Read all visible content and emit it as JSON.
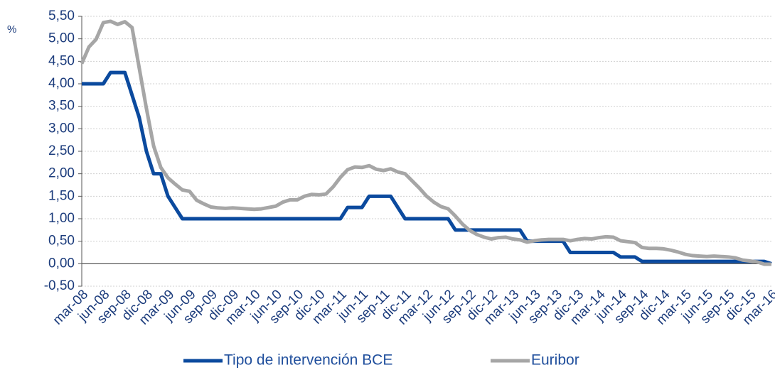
{
  "chart_data": {
    "type": "line",
    "y_unit": "%",
    "categories": [
      "mar-08",
      null,
      null,
      "jun-08",
      null,
      null,
      "sep-08",
      null,
      null,
      "dic-08",
      null,
      null,
      "mar-09",
      null,
      null,
      "jun-09",
      null,
      null,
      "sep-09",
      null,
      null,
      "dic-09",
      null,
      null,
      "mar-10",
      null,
      null,
      "jun-10",
      null,
      null,
      "sep-10",
      null,
      null,
      "dic-10",
      null,
      null,
      "mar-11",
      null,
      null,
      "jun-11",
      null,
      null,
      "sep-11",
      null,
      null,
      "dic-11",
      null,
      null,
      "mar-12",
      null,
      null,
      "jun-12",
      null,
      null,
      "sep-12",
      null,
      null,
      "dic-12",
      null,
      null,
      "mar-13",
      null,
      null,
      "jun-13",
      null,
      null,
      "sep-13",
      null,
      null,
      "dic-13",
      null,
      null,
      "mar-14",
      null,
      null,
      "jun-14",
      null,
      null,
      "sep-14",
      null,
      null,
      "dic-14",
      null,
      null,
      "mar-15",
      null,
      null,
      "jun-15",
      null,
      null,
      "sep-15",
      null,
      null,
      "dic-15",
      null,
      null,
      "mar-16"
    ],
    "series": [
      {
        "name": "Tipo de intervención BCE",
        "color": "#0b4a9e",
        "values": [
          4,
          4,
          4,
          4,
          4.25,
          4.25,
          4.25,
          3.75,
          3.25,
          2.5,
          2,
          2,
          1.5,
          1.25,
          1,
          1,
          1,
          1,
          1,
          1,
          1,
          1,
          1,
          1,
          1,
          1,
          1,
          1,
          1,
          1,
          1,
          1,
          1,
          1,
          1,
          1,
          1,
          1.25,
          1.25,
          1.25,
          1.5,
          1.5,
          1.5,
          1.5,
          1.25,
          1,
          1,
          1,
          1,
          1,
          1,
          1,
          0.75,
          0.75,
          0.75,
          0.75,
          0.75,
          0.75,
          0.75,
          0.75,
          0.75,
          0.75,
          0.5,
          0.5,
          0.5,
          0.5,
          0.5,
          0.5,
          0.25,
          0.25,
          0.25,
          0.25,
          0.25,
          0.25,
          0.25,
          0.15,
          0.15,
          0.15,
          0.05,
          0.05,
          0.05,
          0.05,
          0.05,
          0.05,
          0.05,
          0.05,
          0.05,
          0.05,
          0.05,
          0.05,
          0.05,
          0.05,
          0.05,
          0.05,
          0.05,
          0.05,
          0
        ]
      },
      {
        "name": "Euribor",
        "color": "#a6a6a6",
        "values": [
          4.45,
          4.82,
          4.99,
          5.36,
          5.39,
          5.32,
          5.38,
          5.25,
          4.35,
          3.45,
          2.62,
          2.14,
          1.91,
          1.77,
          1.64,
          1.61,
          1.41,
          1.33,
          1.26,
          1.24,
          1.23,
          1.24,
          1.23,
          1.22,
          1.21,
          1.22,
          1.25,
          1.28,
          1.37,
          1.42,
          1.42,
          1.5,
          1.54,
          1.53,
          1.55,
          1.71,
          1.92,
          2.09,
          2.15,
          2.14,
          2.18,
          2.1,
          2.07,
          2.11,
          2.04,
          2,
          1.84,
          1.68,
          1.5,
          1.37,
          1.27,
          1.22,
          1.06,
          0.88,
          0.74,
          0.65,
          0.59,
          0.55,
          0.58,
          0.59,
          0.55,
          0.53,
          0.48,
          0.51,
          0.53,
          0.54,
          0.54,
          0.54,
          0.51,
          0.54,
          0.56,
          0.55,
          0.58,
          0.6,
          0.59,
          0.51,
          0.49,
          0.47,
          0.36,
          0.34,
          0.34,
          0.33,
          0.3,
          0.26,
          0.21,
          0.18,
          0.17,
          0.16,
          0.17,
          0.16,
          0.15,
          0.13,
          0.08,
          0.06,
          0.04,
          -0.01,
          -0.01
        ]
      }
    ],
    "ylim": [
      -0.5,
      5.5
    ],
    "yticks": [
      {
        "value": -0.5,
        "label": "-0,50"
      },
      {
        "value": 0,
        "label": "0,00"
      },
      {
        "value": 0.5,
        "label": "0,50"
      },
      {
        "value": 1,
        "label": "1,00"
      },
      {
        "value": 1.5,
        "label": "1,50"
      },
      {
        "value": 2,
        "label": "2,00"
      },
      {
        "value": 2.5,
        "label": "2,50"
      },
      {
        "value": 3,
        "label": "3,00"
      },
      {
        "value": 3.5,
        "label": "3,50"
      },
      {
        "value": 4,
        "label": "4,00"
      },
      {
        "value": 4.5,
        "label": "4,50"
      },
      {
        "value": 5,
        "label": "5,00"
      },
      {
        "value": 5.5,
        "label": "5,50"
      }
    ],
    "grid": true,
    "legend": "bottom"
  }
}
